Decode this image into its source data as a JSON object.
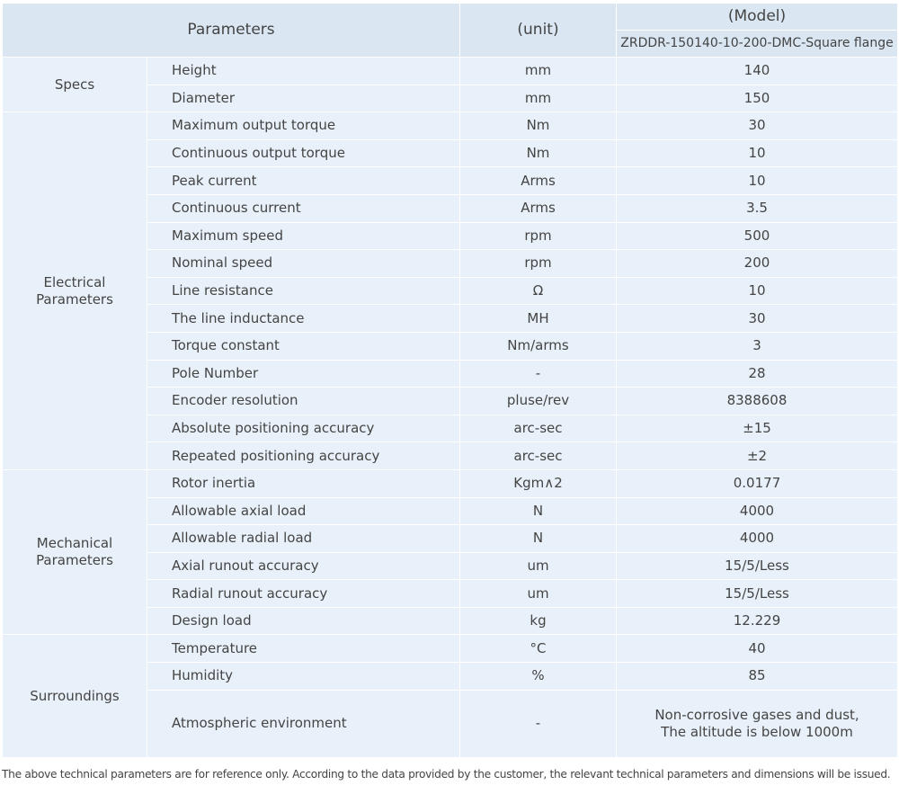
{
  "header": {
    "parameters": "Parameters",
    "unit": "(unit)",
    "model": "(Model)",
    "model_name": "ZRDDR-150140-10-200-DMC-Square flange"
  },
  "groups": [
    {
      "label": "Specs",
      "rows": [
        [
          "Height",
          "mm",
          "140"
        ],
        [
          "Diameter",
          "mm",
          "150"
        ]
      ]
    },
    {
      "label": "Electrical\nParameters",
      "rows": [
        [
          "Maximum output torque",
          "Nm",
          "30"
        ],
        [
          "Continuous output torque",
          "Nm",
          "10"
        ],
        [
          "Peak current",
          "Arms",
          "10"
        ],
        [
          "Continuous current",
          "Arms",
          "3.5"
        ],
        [
          "Maximum speed",
          "rpm",
          "500"
        ],
        [
          "Nominal speed",
          "rpm",
          "200"
        ],
        [
          "Line resistance",
          "Ω",
          "10"
        ],
        [
          "The line inductance",
          "MH",
          "30"
        ],
        [
          "Torque constant",
          "Nm/arms",
          "3"
        ],
        [
          "Pole Number",
          "-",
          "28"
        ],
        [
          "Encoder resolution",
          "pluse/rev",
          "8388608"
        ],
        [
          "Absolute positioning accuracy",
          "arc-sec",
          "±15"
        ],
        [
          "Repeated positioning accuracy",
          "arc-sec",
          "±2"
        ]
      ]
    },
    {
      "label": "Mechanical\nParameters",
      "rows": [
        [
          "Rotor inertia",
          "Kgm∧2",
          "0.0177"
        ],
        [
          "Allowable axial load",
          "N",
          "4000"
        ],
        [
          "Allowable radial load",
          "N",
          "4000"
        ],
        [
          "Axial runout accuracy",
          "um",
          "15/5/Less"
        ],
        [
          "Radial runout accuracy",
          "um",
          "15/5/Less"
        ],
        [
          "Design load",
          "kg",
          "12.229"
        ]
      ]
    },
    {
      "label": "Surroundings",
      "rows": [
        [
          "Temperature",
          "°C",
          "40"
        ],
        [
          "Humidity",
          "%",
          "85"
        ],
        [
          "Atmospheric environment",
          "-",
          "Non-corrosive gases and dust,\nThe altitude is below 1000m"
        ]
      ]
    }
  ],
  "note": "The above technical parameters are for reference only. According to the data provided by the customer, the relevant technical parameters and dimensions will be issued."
}
